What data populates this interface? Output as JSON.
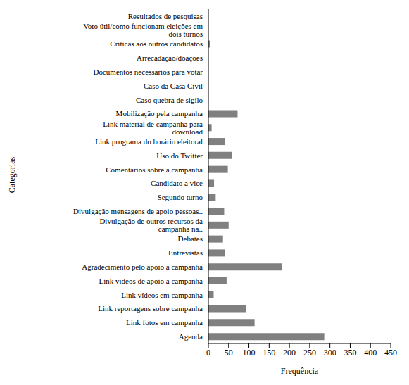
{
  "chart_data": {
    "type": "bar",
    "orientation": "horizontal",
    "x_label": "Frequência",
    "y_label": "Categorias",
    "categories": [
      "Resultados de pesquisas",
      "Voto útil/como funcionam eleições em dois turnos",
      "Críticas aos outros candidatos",
      "Arrecadação/doações",
      "Documentos necessários para votar",
      "Caso da Casa Civil",
      "Caso quebra de sigilo",
      "Mobilização pela campanha",
      "Link material de campanha para download",
      "Link programa do horário eleitoral",
      "Uso do Twitter",
      "Comentários sobre a campanha",
      "Candidato a vice",
      "Segundo turno",
      "Divulgação mensagens de apoio pessoas..",
      "Divulgação de outros recursos da campanha na..",
      "Debates",
      "Entrevistas",
      "Agradecimento pelo apoio à campanha",
      "Link vídeos de apoio à campanha",
      "Link vídeos em campanha",
      "Link reportagens sobre campanha",
      "Link fotos em campanha",
      "Agenda"
    ],
    "values": [
      0,
      0,
      5,
      0,
      0,
      0,
      0,
      72,
      8,
      40,
      58,
      48,
      14,
      18,
      39,
      50,
      36,
      40,
      181,
      45,
      13,
      93,
      114,
      286
    ],
    "color": "#808080",
    "xlim": [
      0,
      450
    ],
    "xticks": [
      0,
      50,
      100,
      150,
      200,
      250,
      300,
      350,
      400,
      450
    ],
    "grid": false
  }
}
